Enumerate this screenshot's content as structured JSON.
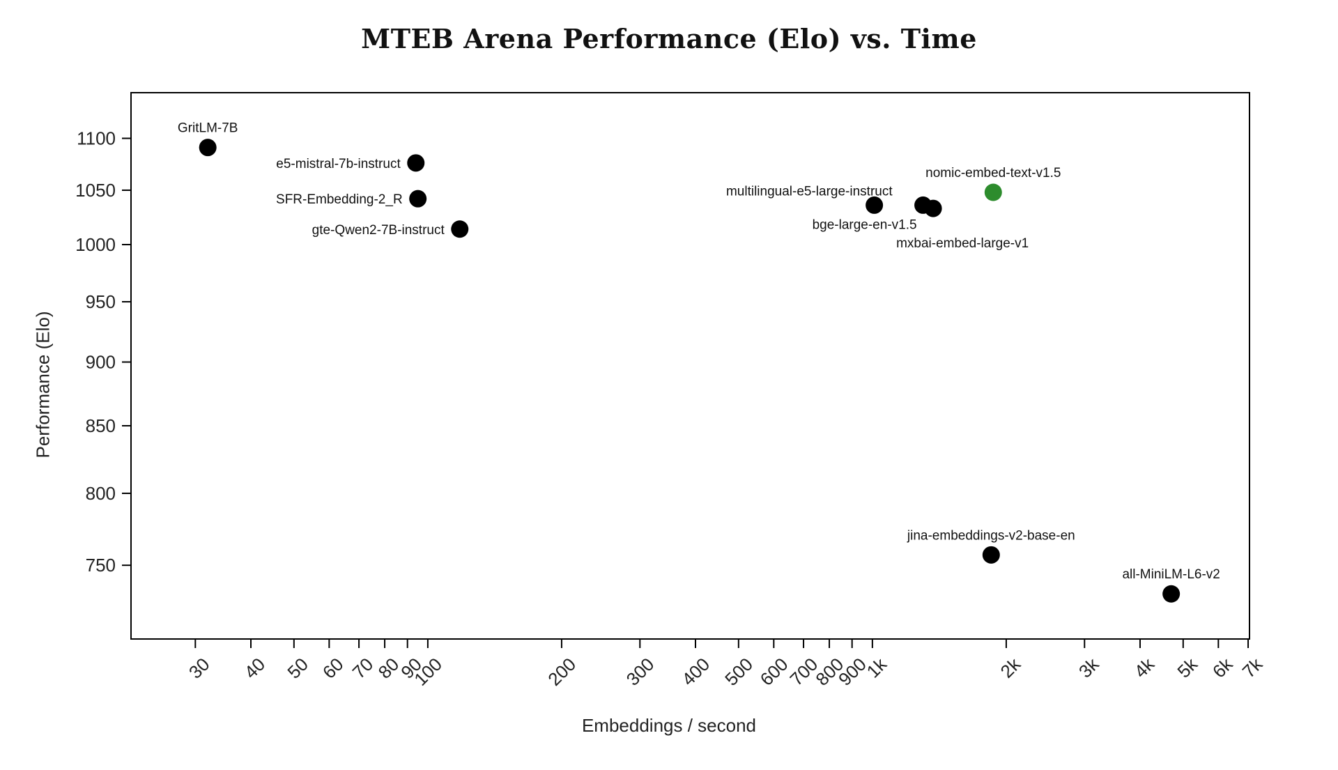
{
  "page": {
    "background_color": "#ffffff",
    "text_color": "#222222"
  },
  "chart_data": {
    "type": "scatter",
    "title": "MTEB Arena Performance (Elo) vs. Time",
    "xlabel": "Embeddings / second",
    "ylabel": "Performance (Elo)",
    "x_scale": "log",
    "y_scale": "log",
    "x_range": [
      21.5,
      7050
    ],
    "y_range": [
      702,
      1146
    ],
    "grid": false,
    "legend": false,
    "axis_color": "#000000",
    "marker": {
      "radius": 12.5,
      "default_color": "#000000",
      "highlight_color": "#2d8c2d"
    },
    "x_ticks": [
      {
        "v": 30,
        "label": "30"
      },
      {
        "v": 40,
        "label": "40"
      },
      {
        "v": 50,
        "label": "50"
      },
      {
        "v": 60,
        "label": "60"
      },
      {
        "v": 70,
        "label": "70"
      },
      {
        "v": 80,
        "label": "80"
      },
      {
        "v": 90,
        "label": "90"
      },
      {
        "v": 100,
        "label": "100"
      },
      {
        "v": 200,
        "label": "200"
      },
      {
        "v": 300,
        "label": "300"
      },
      {
        "v": 400,
        "label": "400"
      },
      {
        "v": 500,
        "label": "500"
      },
      {
        "v": 600,
        "label": "600"
      },
      {
        "v": 700,
        "label": "700"
      },
      {
        "v": 800,
        "label": "800"
      },
      {
        "v": 900,
        "label": "900"
      },
      {
        "v": 1000,
        "label": "1k"
      },
      {
        "v": 2000,
        "label": "2k"
      },
      {
        "v": 3000,
        "label": "3k"
      },
      {
        "v": 4000,
        "label": "4k"
      },
      {
        "v": 5000,
        "label": "5k"
      },
      {
        "v": 6000,
        "label": "6k"
      },
      {
        "v": 7000,
        "label": "7k"
      }
    ],
    "y_ticks": [
      {
        "v": 1100,
        "label": "1100"
      },
      {
        "v": 1050,
        "label": "1050"
      },
      {
        "v": 1000,
        "label": "1000"
      },
      {
        "v": 950,
        "label": "950"
      },
      {
        "v": 900,
        "label": "900"
      },
      {
        "v": 850,
        "label": "850"
      },
      {
        "v": 800,
        "label": "800"
      },
      {
        "v": 750,
        "label": "750"
      }
    ],
    "points": [
      {
        "name": "GritLM-7B",
        "x": 32,
        "y": 1091,
        "color": "#000000",
        "label_position": "above"
      },
      {
        "name": "e5-mistral-7b-instruct",
        "x": 94,
        "y": 1076,
        "color": "#000000",
        "label_position": "left"
      },
      {
        "name": "SFR-Embedding-2_R",
        "x": 95,
        "y": 1042,
        "color": "#000000",
        "label_position": "left"
      },
      {
        "name": "gte-Qwen2-7B-instruct",
        "x": 118,
        "y": 1014,
        "color": "#000000",
        "label_position": "left"
      },
      {
        "name": "multilingual-e5-large-instruct",
        "x": 1010,
        "y": 1036,
        "color": "#000000",
        "label_position": "above-left"
      },
      {
        "name": "bge-large-en-v1.5",
        "x": 1300,
        "y": 1036,
        "color": "#000000",
        "label_position": "below-left"
      },
      {
        "name": "mxbai-embed-large-v1",
        "x": 1370,
        "y": 1033,
        "color": "#000000",
        "label_position": "below-right"
      },
      {
        "name": "nomic-embed-text-v1.5",
        "x": 1870,
        "y": 1048,
        "color": "#2d8c2d",
        "label_position": "above"
      },
      {
        "name": "jina-embeddings-v2-base-en",
        "x": 1850,
        "y": 757,
        "color": "#000000",
        "label_position": "above"
      },
      {
        "name": "all-MiniLM-L6-v2",
        "x": 4700,
        "y": 731,
        "color": "#000000",
        "label_position": "above"
      }
    ]
  }
}
